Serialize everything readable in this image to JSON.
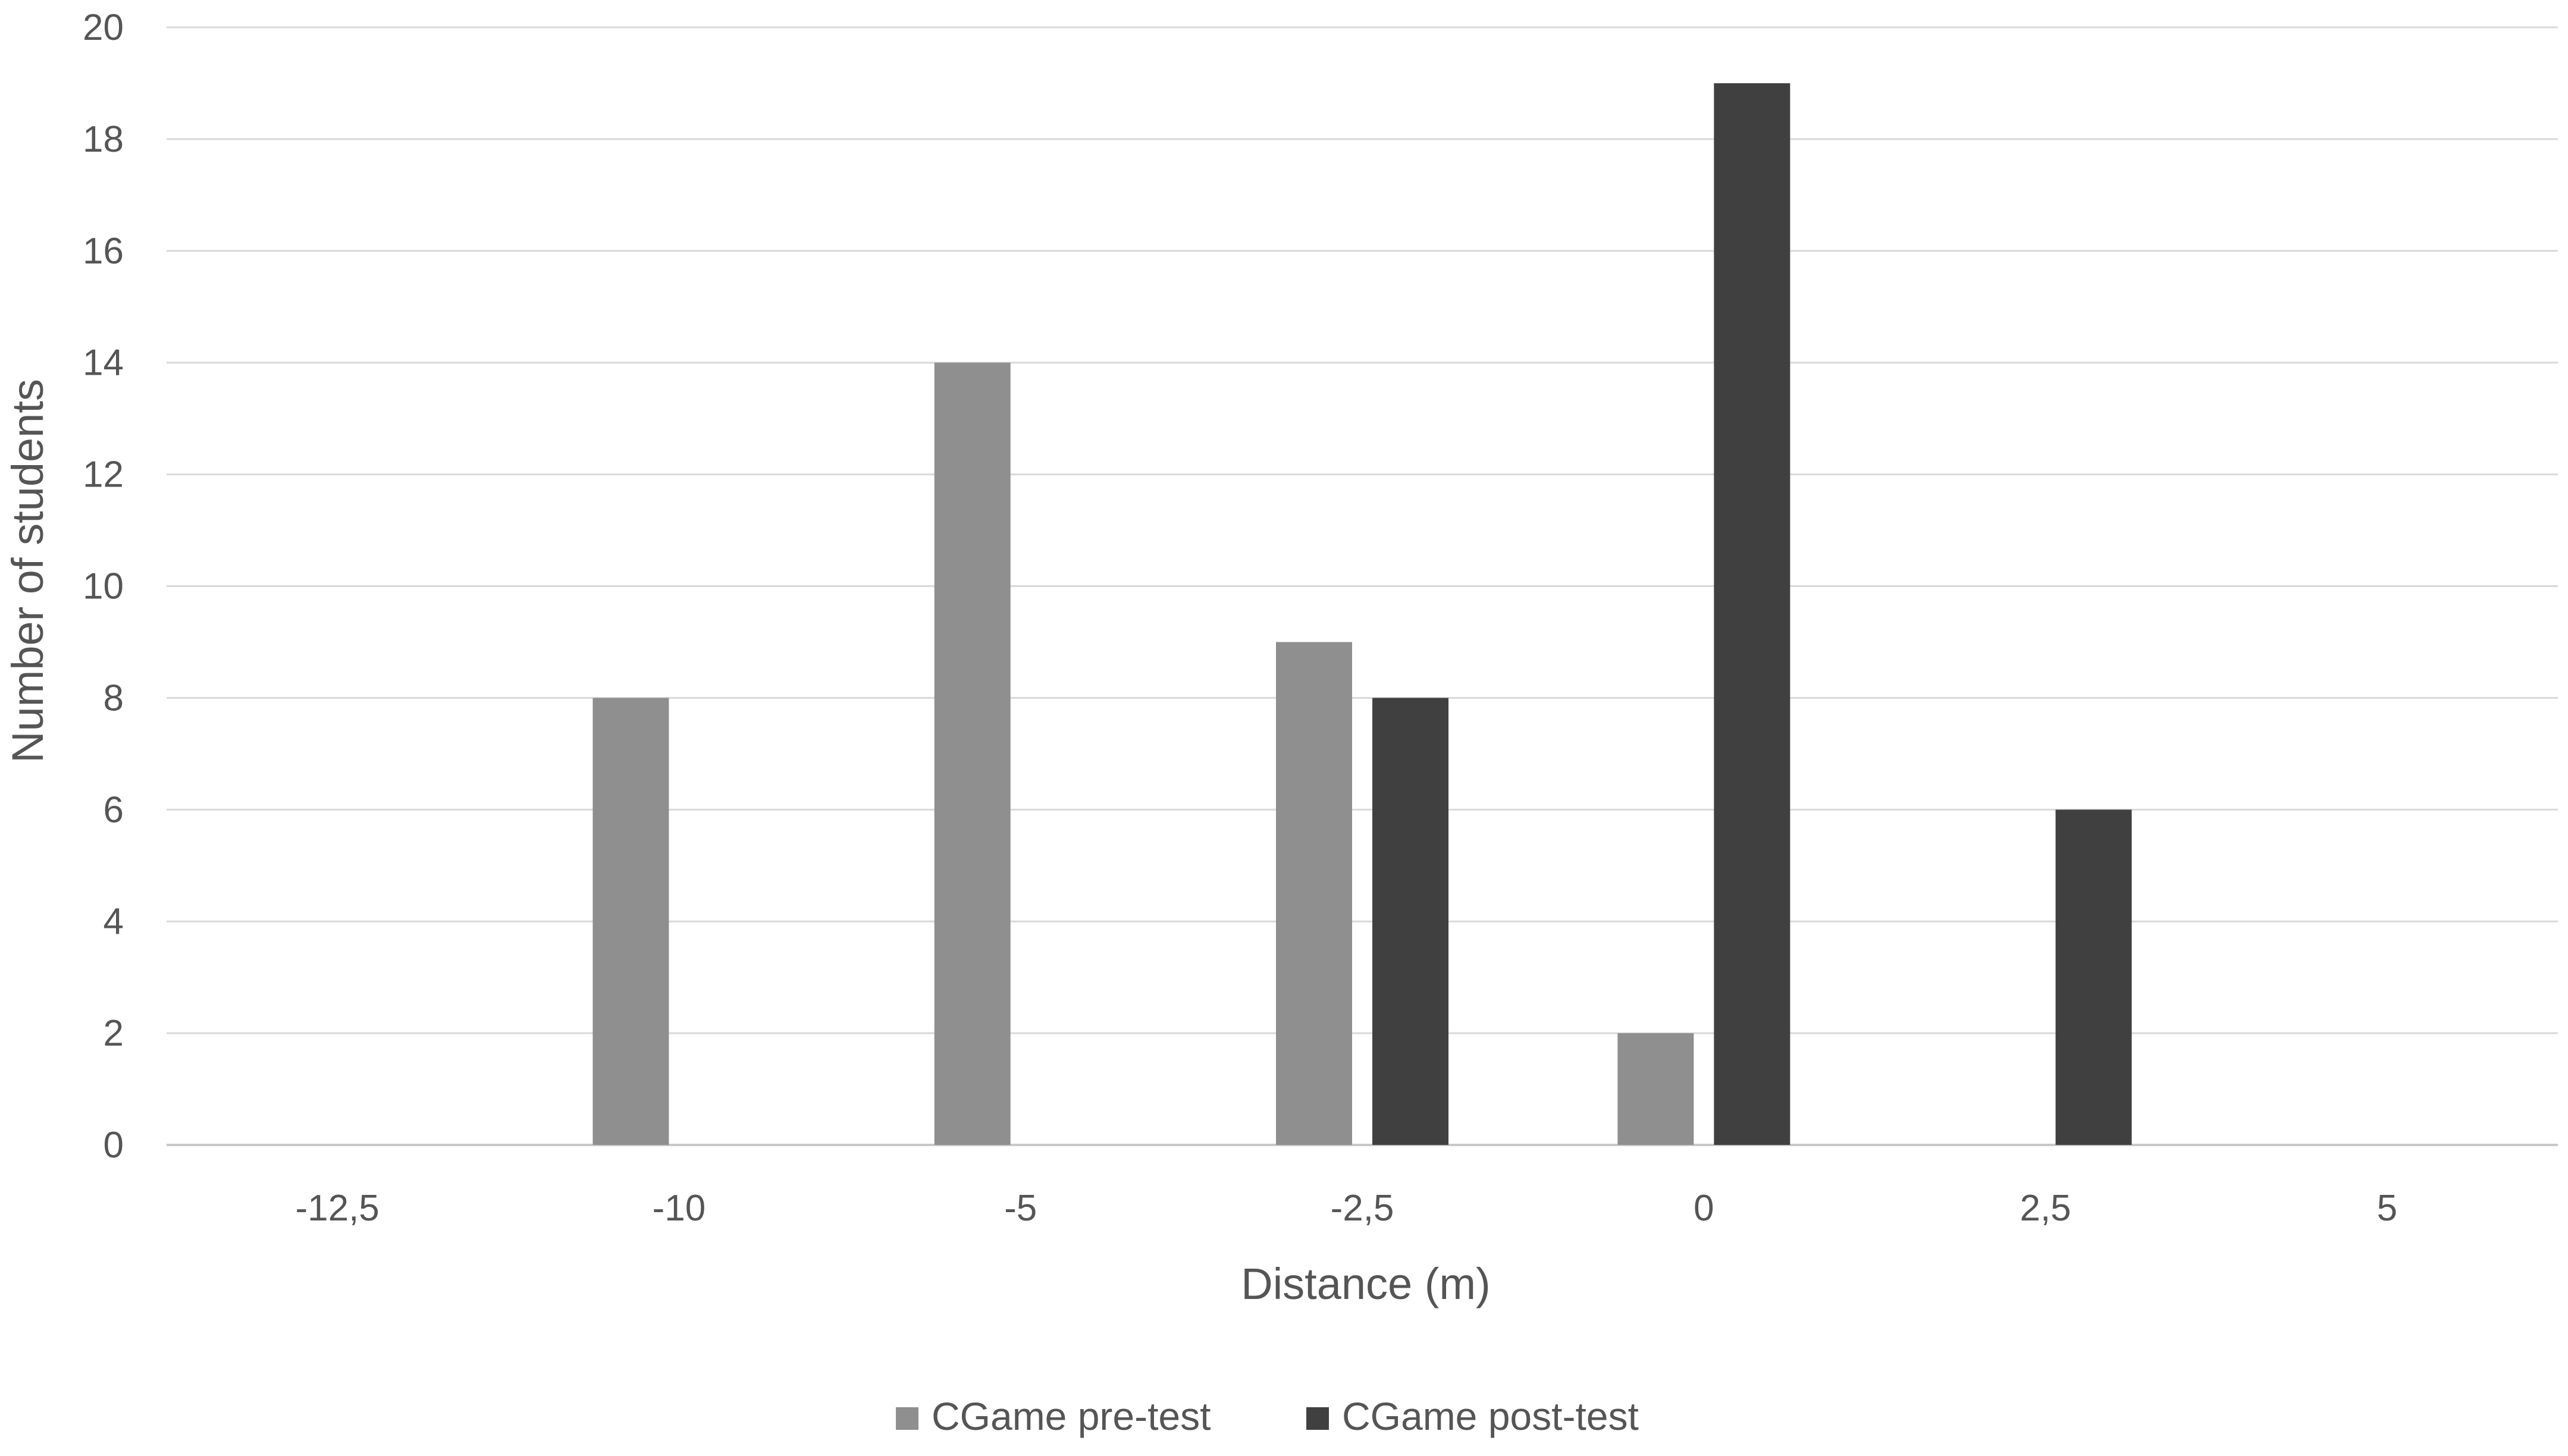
{
  "chart_data": {
    "type": "bar",
    "title": "",
    "xlabel": "Distance (m)",
    "ylabel": "Number of students",
    "categories": [
      "-12,5",
      "-10",
      "-5",
      "-2,5",
      "0",
      "2,5",
      "5"
    ],
    "ylim": [
      0,
      20
    ],
    "yticks": [
      0,
      2,
      4,
      6,
      8,
      10,
      12,
      14,
      16,
      18,
      20
    ],
    "grid": true,
    "legend_position": "bottom",
    "series": [
      {
        "name": "CGame pre-test",
        "color": "#8f8f8f",
        "values": [
          0,
          8,
          14,
          9,
          2,
          0,
          0
        ]
      },
      {
        "name": "CGame post-test",
        "color": "#404040",
        "values": [
          0,
          0,
          0,
          8,
          19,
          6,
          0
        ]
      }
    ]
  }
}
